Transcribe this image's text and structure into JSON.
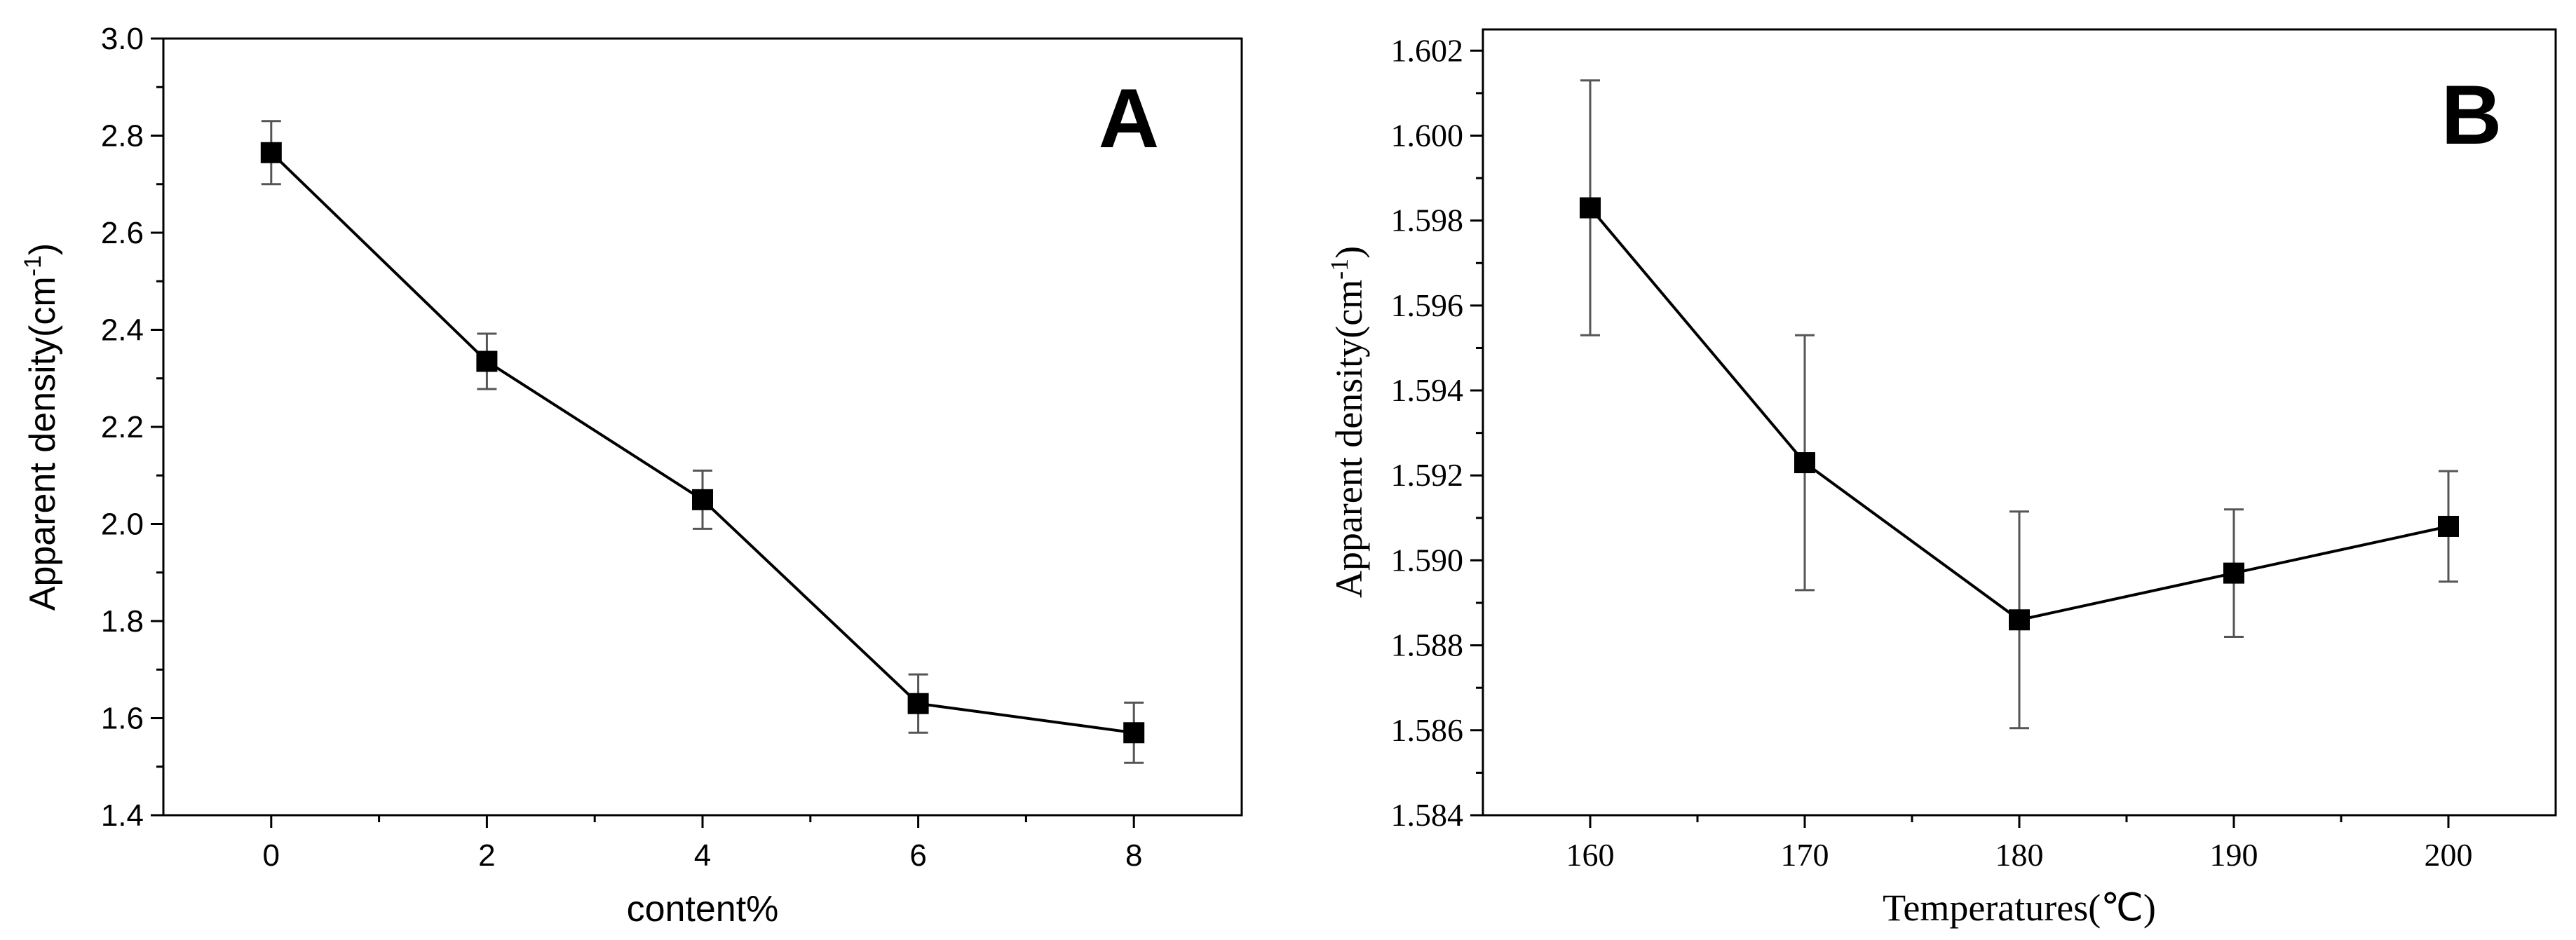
{
  "chart_data": [
    {
      "type": "line",
      "panel_label": "A",
      "xlabel": "content%",
      "ylabel": "Apparent density(cm-1)",
      "ylabel_main": "Apparent density(cm",
      "ylabel_sup": "-1",
      "ylabel_close": ")",
      "xlim": [
        -1,
        9
      ],
      "ylim": [
        1.4,
        3.0
      ],
      "xticks": [
        0,
        2,
        4,
        6,
        8
      ],
      "xtick_labels": [
        "0",
        "2",
        "4",
        "6",
        "8"
      ],
      "yticks": [
        1.4,
        1.6,
        1.8,
        2.0,
        2.2,
        2.4,
        2.6,
        2.8,
        3.0
      ],
      "ytick_labels": [
        "1.4",
        "1.6",
        "1.8",
        "2.0",
        "2.2",
        "2.4",
        "2.6",
        "2.8",
        "3.0"
      ],
      "grid": false,
      "series": [
        {
          "x": [
            0,
            2,
            4,
            6,
            8
          ],
          "y": [
            2.765,
            2.335,
            2.05,
            1.63,
            1.57
          ],
          "err": [
            0.065,
            0.057,
            0.06,
            0.06,
            0.062
          ]
        }
      ]
    },
    {
      "type": "line",
      "panel_label": "B",
      "xlabel": "Temperatures(℃)",
      "ylabel": "Apparent density(cm-1)",
      "ylabel_main": "Apparent density(cm",
      "ylabel_sup": "-1",
      "ylabel_close": ")",
      "xlim": [
        155,
        205
      ],
      "ylim": [
        1.584,
        1.6025
      ],
      "xticks": [
        160,
        170,
        180,
        190,
        200
      ],
      "xtick_labels": [
        "160",
        "170",
        "180",
        "190",
        "200"
      ],
      "yticks": [
        1.584,
        1.586,
        1.588,
        1.59,
        1.592,
        1.594,
        1.596,
        1.598,
        1.6,
        1.602
      ],
      "ytick_labels": [
        "1.584",
        "1.586",
        "1.588",
        "1.590",
        "1.592",
        "1.594",
        "1.596",
        "1.598",
        "1.600",
        "1.602"
      ],
      "grid": false,
      "series": [
        {
          "x": [
            160,
            170,
            180,
            190,
            200
          ],
          "y": [
            1.5983,
            1.5923,
            1.5886,
            1.5897,
            1.5908
          ],
          "err": [
            0.003,
            0.003,
            0.00255,
            0.0015,
            0.0013
          ]
        }
      ]
    }
  ]
}
